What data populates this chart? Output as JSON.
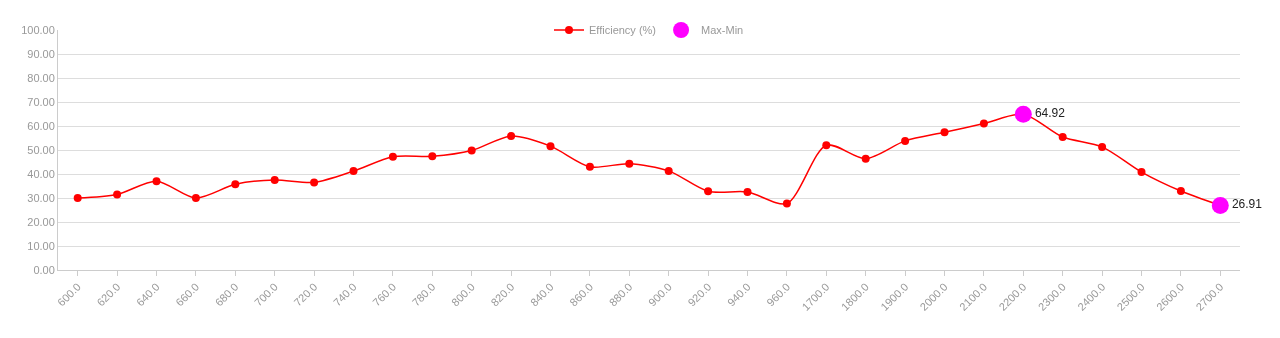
{
  "chart_data": {
    "type": "line",
    "categories": [
      "600.0",
      "620.0",
      "640.0",
      "660.0",
      "680.0",
      "700.0",
      "720.0",
      "740.0",
      "760.0",
      "780.0",
      "800.0",
      "820.0",
      "840.0",
      "860.0",
      "880.0",
      "900.0",
      "920.0",
      "940.0",
      "960.0",
      "1700.0",
      "1800.0",
      "1900.0",
      "2000.0",
      "2100.0",
      "2200.0",
      "2300.0",
      "2400.0",
      "2500.0",
      "2600.0",
      "2700.0"
    ],
    "series": [
      {
        "name": "Efficiency (%)",
        "color": "#ff0000",
        "marker": "circle",
        "values": [
          30.0,
          31.5,
          37.0,
          30.0,
          35.7,
          37.5,
          36.5,
          41.2,
          47.2,
          47.4,
          49.8,
          55.8,
          51.6,
          43.0,
          44.3,
          41.3,
          32.8,
          32.5,
          27.7,
          52.0,
          46.4,
          53.8,
          57.4,
          61.0,
          64.92,
          55.4,
          51.3,
          40.8,
          32.9,
          26.91
        ]
      },
      {
        "name": "Max-Min",
        "type": "scatter",
        "color": "#ff00ff",
        "marker": "circle",
        "x": [
          "2200.0",
          "2700.0"
        ],
        "values": [
          64.92,
          26.91
        ],
        "value_labels": [
          "64.92",
          "26.91"
        ]
      }
    ],
    "ylim": [
      0,
      100
    ],
    "yticks": [
      {
        "value": 0,
        "label": "0.00"
      },
      {
        "value": 10,
        "label": "10.00"
      },
      {
        "value": 20,
        "label": "20.00"
      },
      {
        "value": 30,
        "label": "30.00"
      },
      {
        "value": 40,
        "label": "40.00"
      },
      {
        "value": 50,
        "label": "50.00"
      },
      {
        "value": 60,
        "label": "60.00"
      },
      {
        "value": 70,
        "label": "70.00"
      },
      {
        "value": 80,
        "label": "80.00"
      },
      {
        "value": 90,
        "label": "90.00"
      },
      {
        "value": 100,
        "label": "100.00"
      }
    ],
    "grid": "y",
    "legend": "top",
    "line_style": "solid"
  }
}
